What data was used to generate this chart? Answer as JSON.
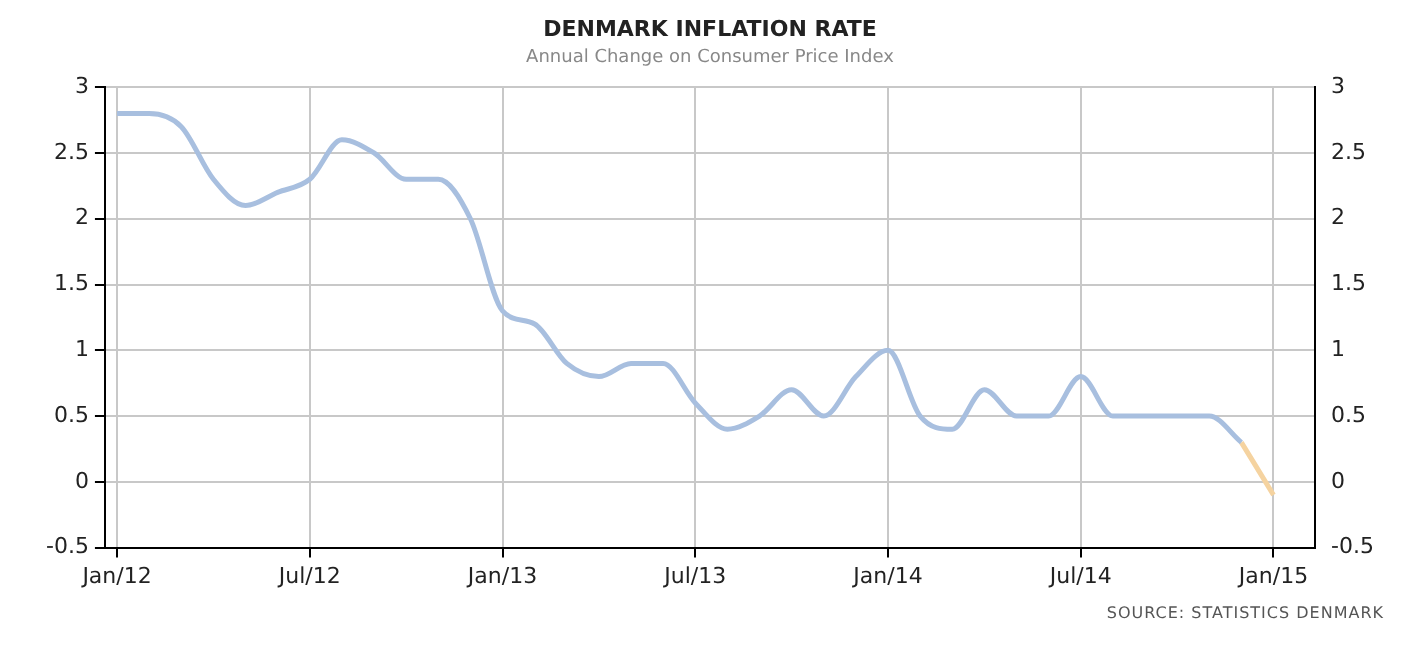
{
  "chart_data": {
    "type": "line",
    "title": "DENMARK INFLATION RATE",
    "subtitle": "Annual Change on Consumer Price Index",
    "series": [
      {
        "color": "#a8bfdf",
        "x": [
          "2012-01",
          "2012-02",
          "2012-03",
          "2012-04",
          "2012-05",
          "2012-06",
          "2012-07",
          "2012-08",
          "2012-09",
          "2012-10",
          "2012-11",
          "2012-12",
          "2013-01",
          "2013-02",
          "2013-03",
          "2013-04",
          "2013-05",
          "2013-06",
          "2013-07",
          "2013-08",
          "2013-09",
          "2013-10",
          "2013-11",
          "2013-12",
          "2014-01",
          "2014-02",
          "2014-03",
          "2014-04",
          "2014-05",
          "2014-06",
          "2014-07",
          "2014-08",
          "2014-09",
          "2014-10",
          "2014-11",
          "2014-12"
        ],
        "values": [
          2.8,
          2.8,
          2.7,
          2.3,
          2.1,
          2.2,
          2.3,
          2.6,
          2.5,
          2.3,
          2.3,
          2.0,
          1.3,
          1.2,
          0.9,
          0.8,
          0.9,
          0.9,
          0.6,
          0.4,
          0.5,
          0.7,
          0.5,
          0.8,
          1.0,
          0.5,
          0.4,
          0.7,
          0.5,
          0.5,
          0.8,
          0.5,
          0.5,
          0.5,
          0.5,
          0.3
        ]
      },
      {
        "color": "#f5d3a0",
        "x": [
          "2014-12",
          "2015-01"
        ],
        "values": [
          0.3,
          -0.1
        ]
      }
    ],
    "xlim": [
      "2011-12-20",
      "2015-02-10"
    ],
    "xticks": [
      {
        "value": "2012-01",
        "label": "Jan/12"
      },
      {
        "value": "2012-07",
        "label": "Jul/12"
      },
      {
        "value": "2013-01",
        "label": "Jan/13"
      },
      {
        "value": "2013-07",
        "label": "Jul/13"
      },
      {
        "value": "2014-01",
        "label": "Jan/14"
      },
      {
        "value": "2014-07",
        "label": "Jul/14"
      },
      {
        "value": "2015-01",
        "label": "Jan/15"
      }
    ],
    "ylim": [
      -0.5,
      3
    ],
    "yticks": [
      -0.5,
      0,
      0.5,
      1,
      1.5,
      2,
      2.5,
      3
    ],
    "y2lim": [
      -0.5,
      3
    ],
    "y2ticks": [
      -0.5,
      0,
      0.5,
      1,
      1.5,
      2,
      2.5,
      3
    ],
    "grid": true,
    "legend": false,
    "marker": "none",
    "line_style": "solid",
    "annotations": [
      "SOURCE: STATISTICS DENMARK"
    ]
  }
}
